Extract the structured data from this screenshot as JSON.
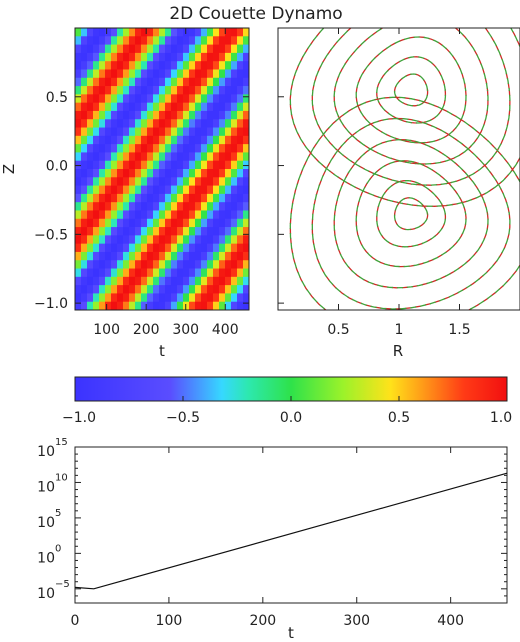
{
  "figure_title": "2D Couette Dynamo",
  "chart_data": [
    {
      "type": "heatmap",
      "xlabel": "t",
      "ylabel": "Z",
      "xlim": [
        20,
        460
      ],
      "ylim": [
        -1.05,
        1.0
      ],
      "xticks": [
        100,
        200,
        300,
        400
      ],
      "yticks": [
        -1.0,
        -0.5,
        0.0,
        0.5
      ],
      "ytick_labels": [
        "−1.0",
        "−0.5",
        "0.0",
        "0.5"
      ],
      "field": "cos(2π(t/220 − z/0.85) + 1.6)",
      "wave_period_t": 220,
      "wave_wavelength_z": 0.85,
      "wave_phase": 1.6
    },
    {
      "type": "contour",
      "xlabel": "R",
      "xlim": [
        0.0,
        2.0
      ],
      "ylim": [
        -1.05,
        1.0
      ],
      "xticks": [
        0.5,
        1.0,
        1.5
      ],
      "line_style": "dashed",
      "line_colors": [
        "#d02c28",
        "#3fa33a"
      ],
      "cells": [
        {
          "center_r": 1.1,
          "center_z": 0.55
        },
        {
          "center_r": 1.1,
          "center_z": -0.35
        }
      ],
      "contour_levels": [
        0.12,
        0.25,
        0.4,
        0.56,
        0.72,
        0.88
      ]
    },
    {
      "type": "colorbar",
      "colormap": "rainbow",
      "range": [
        -1.0,
        1.0
      ],
      "ticks": [
        -1.0,
        -0.5,
        0.0,
        0.5,
        1.0
      ],
      "tick_labels": [
        "−1.0",
        "−0.5",
        "0.0",
        "0.5",
        "1.0"
      ]
    },
    {
      "type": "line",
      "xlabel": "t",
      "ylabel": "",
      "yscale": "log",
      "xlim": [
        0,
        460
      ],
      "ylim_exp": [
        -7,
        15
      ],
      "xticks": [
        0,
        100,
        200,
        300,
        400
      ],
      "ytick_exps": [
        "−5",
        "0",
        "5",
        "10",
        "15"
      ],
      "ytick_exp_values": [
        -5,
        0,
        5,
        10,
        15
      ],
      "series": [
        {
          "x": [
            0,
            20,
            460
          ],
          "log10_y": [
            -4.8,
            -5.0,
            11.3
          ]
        }
      ]
    }
  ]
}
